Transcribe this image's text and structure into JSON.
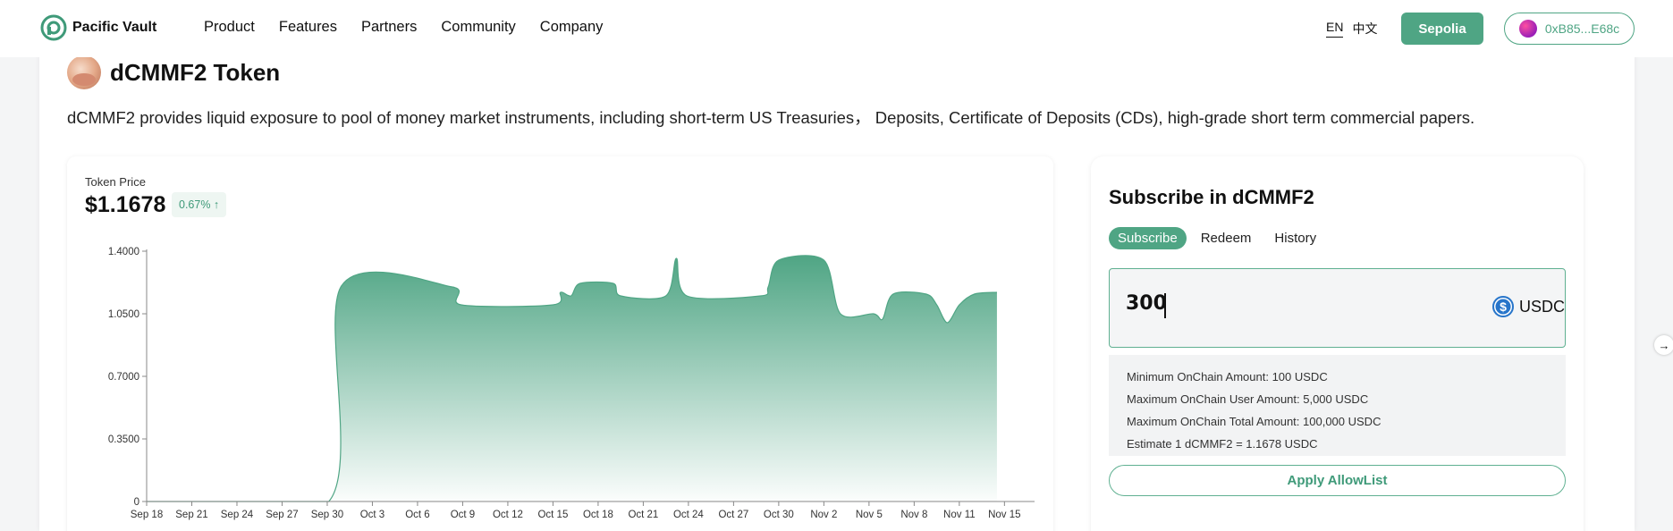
{
  "brand": {
    "name": "Pacific Vault",
    "accent": "#4fa584"
  },
  "nav": {
    "items": [
      "Product",
      "Features",
      "Partners",
      "Community",
      "Company"
    ],
    "lang": {
      "en": "EN",
      "zh": "中文"
    },
    "network_button": "Sepolia",
    "wallet": "0xB85...E68c"
  },
  "token": {
    "name": "dCMMF2 Token",
    "description": "dCMMF2 provides liquid exposure to pool of money market instruments, including short-term US Treasuries， Deposits, Certificate of Deposits (CDs), high-grade short term commercial papers."
  },
  "price": {
    "label": "Token Price",
    "value": "$1.1678",
    "change": "0.67% ↑"
  },
  "chart_data": {
    "type": "area",
    "color": "#4fa584",
    "ylim": [
      0,
      1.4
    ],
    "yticks": [
      "0",
      "0.3500",
      "0.7000",
      "1.0500",
      "1.4000"
    ],
    "ytick_values": [
      0,
      0.35,
      0.7,
      1.05,
      1.4
    ],
    "xlim": [
      0,
      59
    ],
    "xticks": [
      "Sep 18",
      "Sep 21",
      "Sep 24",
      "Sep 27",
      "Sep 30",
      "Oct 3",
      "Oct 6",
      "Oct 9",
      "Oct 12",
      "Oct 15",
      "Oct 18",
      "Oct 21",
      "Oct 24",
      "Oct 27",
      "Oct 30",
      "Nov 2",
      "Nov 5",
      "Nov 8",
      "Nov 11",
      "Nov 15"
    ],
    "xtick_days": [
      0,
      3,
      6,
      9,
      12,
      15,
      18,
      21,
      24,
      27,
      30,
      33,
      36,
      39,
      42,
      45,
      48,
      51,
      54,
      57
    ],
    "points": [
      [
        0,
        0
      ],
      [
        12.1,
        0
      ],
      [
        12.9,
        1.2
      ],
      [
        20.3,
        1.2
      ],
      [
        20.9,
        1.1
      ],
      [
        27.0,
        1.1
      ],
      [
        27.5,
        1.17
      ],
      [
        28.2,
        1.15
      ],
      [
        28.8,
        1.22
      ],
      [
        31.0,
        1.22
      ],
      [
        31.5,
        1.15
      ],
      [
        34.5,
        1.15
      ],
      [
        35.2,
        1.36
      ],
      [
        35.9,
        1.15
      ],
      [
        40.8,
        1.15
      ],
      [
        41.3,
        1.2
      ],
      [
        42.0,
        1.35
      ],
      [
        45.0,
        1.35
      ],
      [
        46.1,
        1.05
      ],
      [
        48.3,
        1.05
      ],
      [
        48.9,
        1.02
      ],
      [
        49.6,
        1.16
      ],
      [
        51.8,
        1.16
      ],
      [
        52.5,
        1.1
      ],
      [
        53.2,
        1.0
      ],
      [
        54.0,
        1.1
      ],
      [
        55.0,
        1.16
      ],
      [
        56.5,
        1.17
      ]
    ]
  },
  "subscribe": {
    "title": "Subscribe in dCMMF2",
    "tabs": [
      "Subscribe",
      "Redeem",
      "History"
    ],
    "amount": "300",
    "currency": "USDC",
    "info": [
      "Minimum OnChain Amount: 100 USDC",
      "Maximum OnChain User Amount: 5,000 USDC",
      "Maximum OnChain Total Amount: 100,000 USDC",
      "Estimate 1 dCMMF2 = 1.1678 USDC"
    ],
    "allow_button": "Apply AllowList"
  }
}
